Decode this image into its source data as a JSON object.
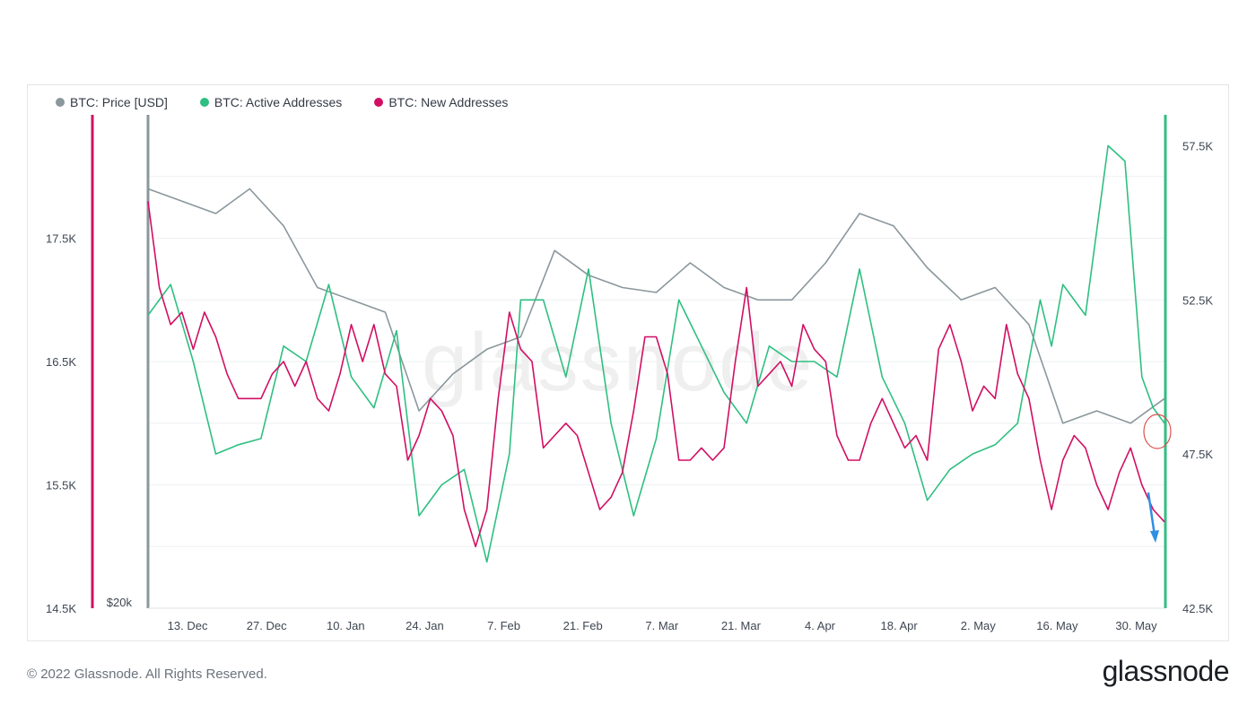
{
  "legend": [
    {
      "label": "BTC: Price [USD]",
      "color": "#8a979c"
    },
    {
      "label": "BTC: Active Addresses",
      "color": "#2fbf82"
    },
    {
      "label": "BTC: New Addresses",
      "color": "#d10f63"
    }
  ],
  "watermark": "glassnode",
  "footer": {
    "copyright": "© 2022 Glassnode. All Rights Reserved.",
    "logo": "glassnode"
  },
  "chart_data": {
    "type": "line",
    "x_ticks": [
      "13. Dec",
      "27. Dec",
      "10. Jan",
      "24. Jan",
      "7. Feb",
      "21. Feb",
      "7. Mar",
      "21. Mar",
      "4. Apr",
      "18. Apr",
      "2. May",
      "16. May",
      "30. May"
    ],
    "left_axis_new_addresses": {
      "ticks": [
        "14.5K",
        "15.5K",
        "16.5K",
        "17.5K"
      ],
      "ylim": [
        14500,
        18500
      ]
    },
    "price_axis": {
      "ticks": [
        "$20k"
      ]
    },
    "right_axis_active_addresses": {
      "ticks": [
        "42.5K",
        "47.5K",
        "52.5K",
        "57.5K"
      ],
      "ylim": [
        42500,
        58500
      ]
    },
    "series": [
      {
        "name": "BTC: Price [USD]",
        "color": "#8a979c",
        "x": [
          0,
          6,
          12,
          18,
          24,
          30,
          36,
          42,
          48,
          54,
          60,
          66,
          72,
          78,
          84,
          90,
          96,
          102,
          108,
          114,
          120,
          126,
          132,
          138,
          144,
          150,
          156,
          162,
          168,
          174,
          180
        ],
        "y": [
          57000,
          56500,
          56000,
          57000,
          55500,
          53000,
          52500,
          52000,
          48000,
          49500,
          50500,
          51000,
          54500,
          53500,
          53000,
          52800,
          54000,
          53000,
          52500,
          52500,
          54000,
          56000,
          55500,
          53800,
          52500,
          53000,
          51500,
          47500,
          48000,
          47500,
          48500
        ]
      },
      {
        "name": "BTC: Active Addresses",
        "color": "#2fbf82",
        "x": [
          0,
          4,
          8,
          12,
          16,
          20,
          24,
          28,
          32,
          36,
          40,
          44,
          48,
          52,
          56,
          60,
          64,
          66,
          70,
          74,
          78,
          82,
          86,
          90,
          94,
          98,
          102,
          106,
          110,
          114,
          118,
          122,
          126,
          130,
          134,
          138,
          142,
          146,
          150,
          154,
          158,
          160,
          162,
          166,
          170,
          173,
          176,
          178,
          180
        ],
        "y": [
          52000,
          53000,
          50500,
          47500,
          47800,
          48000,
          51000,
          50500,
          53000,
          50000,
          49000,
          51500,
          45500,
          46500,
          47000,
          44000,
          47500,
          52500,
          52500,
          50000,
          53500,
          48500,
          45500,
          48000,
          52500,
          51000,
          49500,
          48500,
          51000,
          50500,
          50500,
          50000,
          53500,
          50000,
          48500,
          46000,
          47000,
          47500,
          47800,
          48500,
          52500,
          51000,
          53000,
          52000,
          57500,
          57000,
          50000,
          49000,
          48500
        ]
      },
      {
        "name": "BTC: New Addresses",
        "color": "#d10f63",
        "x": [
          0,
          2,
          4,
          6,
          8,
          10,
          12,
          14,
          16,
          18,
          20,
          22,
          24,
          26,
          28,
          30,
          32,
          34,
          36,
          38,
          40,
          42,
          44,
          46,
          48,
          50,
          52,
          54,
          56,
          58,
          60,
          62,
          64,
          66,
          68,
          70,
          72,
          74,
          76,
          78,
          80,
          82,
          84,
          86,
          88,
          90,
          92,
          94,
          96,
          98,
          100,
          102,
          104,
          106,
          108,
          110,
          112,
          114,
          116,
          118,
          120,
          122,
          124,
          126,
          128,
          130,
          132,
          134,
          136,
          138,
          140,
          142,
          144,
          146,
          148,
          150,
          152,
          154,
          156,
          158,
          160,
          162,
          164,
          166,
          168,
          170,
          172,
          174,
          176,
          178,
          180
        ],
        "y": [
          17800,
          17100,
          16800,
          16900,
          16600,
          16900,
          16700,
          16400,
          16200,
          16200,
          16200,
          16400,
          16500,
          16300,
          16500,
          16200,
          16100,
          16400,
          16800,
          16500,
          16800,
          16400,
          16300,
          15700,
          15900,
          16200,
          16100,
          15900,
          15300,
          15000,
          15300,
          16200,
          16900,
          16600,
          16500,
          15800,
          15900,
          16000,
          15900,
          15600,
          15300,
          15400,
          15600,
          16100,
          16700,
          16700,
          16400,
          15700,
          15700,
          15800,
          15700,
          15800,
          16500,
          17100,
          16300,
          16400,
          16500,
          16300,
          16800,
          16600,
          16500,
          15900,
          15700,
          15700,
          16000,
          16200,
          16000,
          15800,
          15900,
          15700,
          16600,
          16800,
          16500,
          16100,
          16300,
          16200,
          16800,
          16400,
          16200,
          15700,
          15300,
          15700,
          15900,
          15800,
          15500,
          15300,
          15600,
          15800,
          15500,
          15300,
          15200
        ]
      }
    ]
  }
}
